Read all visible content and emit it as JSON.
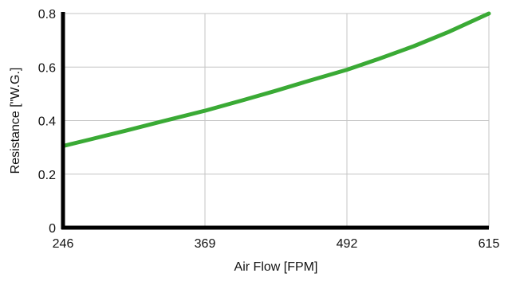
{
  "chart_data": {
    "type": "line",
    "title": "",
    "xlabel": "Air Flow [FPM]",
    "ylabel": "Resistance [\"W.G.]",
    "x_ticks": [
      "246",
      "369",
      "492",
      "615"
    ],
    "y_ticks": [
      "0",
      "0.2",
      "0.4",
      "0.6",
      "0.8"
    ],
    "xlim": [
      246,
      615
    ],
    "ylim": [
      0,
      0.8
    ],
    "grid": true,
    "series": [
      {
        "color": "#3aaa35",
        "x": [
          246,
          270,
          300,
          330,
          369,
          400,
          430,
          460,
          492,
          520,
          550,
          580,
          615
        ],
        "y": [
          0.305,
          0.33,
          0.362,
          0.395,
          0.437,
          0.474,
          0.511,
          0.55,
          0.59,
          0.631,
          0.678,
          0.731,
          0.8
        ]
      }
    ]
  }
}
